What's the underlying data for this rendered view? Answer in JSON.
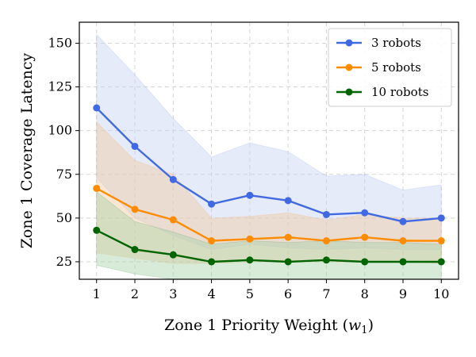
{
  "chart_data": {
    "type": "line",
    "xlabel": "Zone 1 Priority Weight (",
    "xlabel_symbol": "w",
    "xlabel_subscript": "1",
    "xlabel_close": ")",
    "ylabel": "Zone 1 Coverage Latency",
    "x": [
      1,
      2,
      3,
      4,
      5,
      6,
      7,
      8,
      9,
      10
    ],
    "xlim": [
      0.55,
      10.45
    ],
    "ylim": [
      15,
      162
    ],
    "xticks": [
      "1",
      "2",
      "3",
      "4",
      "5",
      "6",
      "7",
      "8",
      "9",
      "10"
    ],
    "yticks": [
      25,
      50,
      75,
      100,
      125,
      150
    ],
    "grid": true,
    "legend_position": "top-right",
    "series": [
      {
        "name": "3 robots",
        "color": "#4169e1",
        "fill": "#c7d2f5",
        "values": [
          113,
          91,
          72,
          58,
          63,
          60,
          52,
          53,
          48,
          50
        ],
        "upper": [
          155,
          132,
          107,
          85,
          93,
          88,
          74,
          75,
          66,
          69
        ],
        "lower": [
          73,
          50,
          40,
          32,
          35,
          33,
          32,
          33,
          32,
          32
        ]
      },
      {
        "name": "5 robots",
        "color": "#ff8c00",
        "fill": "#f0c9a0",
        "values": [
          67,
          55,
          49,
          37,
          38,
          39,
          37,
          39,
          37,
          37
        ],
        "upper": [
          105,
          83,
          75,
          50,
          51,
          53,
          49,
          52,
          50,
          50
        ],
        "lower": [
          30,
          27,
          24,
          24,
          25,
          25,
          25,
          25,
          25,
          24
        ]
      },
      {
        "name": "10 robots",
        "color": "#006400",
        "fill": "#a8d0a8",
        "values": [
          43,
          32,
          29,
          25,
          26,
          25,
          26,
          25,
          25,
          25
        ],
        "upper": [
          65,
          48,
          42,
          35,
          37,
          36,
          37,
          36,
          36,
          35
        ],
        "lower": [
          23,
          18,
          15,
          15,
          15,
          15,
          15,
          15,
          15,
          15
        ]
      }
    ]
  }
}
